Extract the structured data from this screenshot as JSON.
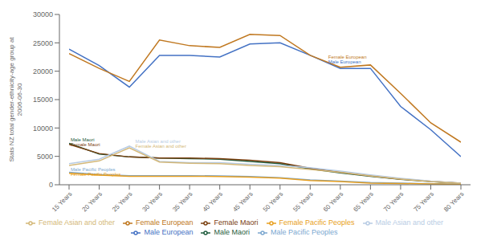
{
  "chart_data": {
    "type": "line",
    "categories": [
      "15 Years",
      "20 Years",
      "25 Years",
      "30 Years",
      "35 Years",
      "40 Years",
      "45 Years",
      "50 Years",
      "55 Years",
      "60 Years",
      "65 Years",
      "70 Years",
      "75 Years",
      "80 Years"
    ],
    "series": [
      {
        "name": "Male European",
        "color": "#4472C4",
        "values": [
          23900,
          21000,
          17200,
          22800,
          22800,
          22500,
          24800,
          25000,
          22800,
          20500,
          20500,
          13800,
          9700,
          4950
        ]
      },
      {
        "name": "Female European",
        "color": "#C07820",
        "values": [
          23100,
          20500,
          18200,
          25500,
          24500,
          24200,
          26500,
          26300,
          22800,
          20700,
          21100,
          16100,
          10900,
          7500
        ]
      },
      {
        "name": "Male Maori",
        "color": "#1F5C3E",
        "values": [
          7300,
          5400,
          4900,
          4700,
          4600,
          4500,
          4100,
          3700,
          2800,
          2100,
          1500,
          950,
          550,
          250
        ]
      },
      {
        "name": "Female Maori",
        "color": "#7B4010",
        "values": [
          7100,
          5500,
          4900,
          4700,
          4700,
          4600,
          4300,
          3900,
          2900,
          2200,
          1550,
          1000,
          600,
          300
        ]
      },
      {
        "name": "Male Pacific Peoples",
        "color": "#7BA7D0",
        "values": [
          2200,
          1800,
          1600,
          1600,
          1600,
          1550,
          1450,
          1250,
          850,
          650,
          380,
          270,
          170,
          90
        ]
      },
      {
        "name": "Female Pacific Peoples",
        "color": "#E8A020",
        "values": [
          2000,
          1700,
          1500,
          1500,
          1500,
          1450,
          1350,
          1150,
          750,
          550,
          300,
          220,
          130,
          70
        ]
      },
      {
        "name": "Male Asian and other",
        "color": "#B8CCE4",
        "values": [
          3700,
          4500,
          6800,
          4100,
          3900,
          3900,
          3600,
          3400,
          3000,
          2400,
          1750,
          1150,
          650,
          270
        ]
      },
      {
        "name": "Female Asian and other",
        "color": "#D4B878",
        "values": [
          3400,
          4200,
          6500,
          4000,
          3800,
          3700,
          3400,
          3200,
          2700,
          2200,
          1550,
          1000,
          550,
          230
        ]
      }
    ],
    "annotations": [
      {
        "text": "Female European",
        "x": 8.6,
        "y": 22200,
        "color": "#C07820"
      },
      {
        "text": "Male European",
        "x": 8.6,
        "y": 21400,
        "color": "#4472C4"
      },
      {
        "text": "Male Maori",
        "x": 0.05,
        "y": 7600,
        "color": "#1F5C3E"
      },
      {
        "text": "Female Maori",
        "x": 0.05,
        "y": 6800,
        "color": "#7B4010"
      },
      {
        "text": "Male Pacific Peoples",
        "x": 0.05,
        "y": 2400,
        "color": "#7BA7D0"
      },
      {
        "text": "Female Pacific Peoples",
        "x": 0.05,
        "y": 1600,
        "color": "#E8A020"
      },
      {
        "text": "Male Asian and other",
        "x": 2.2,
        "y": 7300,
        "color": "#B8CCE4"
      },
      {
        "text": "Female Asian and other",
        "x": 2.2,
        "y": 6500,
        "color": "#D4B878"
      }
    ],
    "ylabel": "Stats NZ total gender-ethnicity-age group at\n2006-06-30",
    "ylim": [
      0,
      30000
    ],
    "yticks": [
      0,
      5000,
      10000,
      15000,
      20000,
      25000,
      30000
    ],
    "grid": false,
    "legend": "bottom"
  }
}
